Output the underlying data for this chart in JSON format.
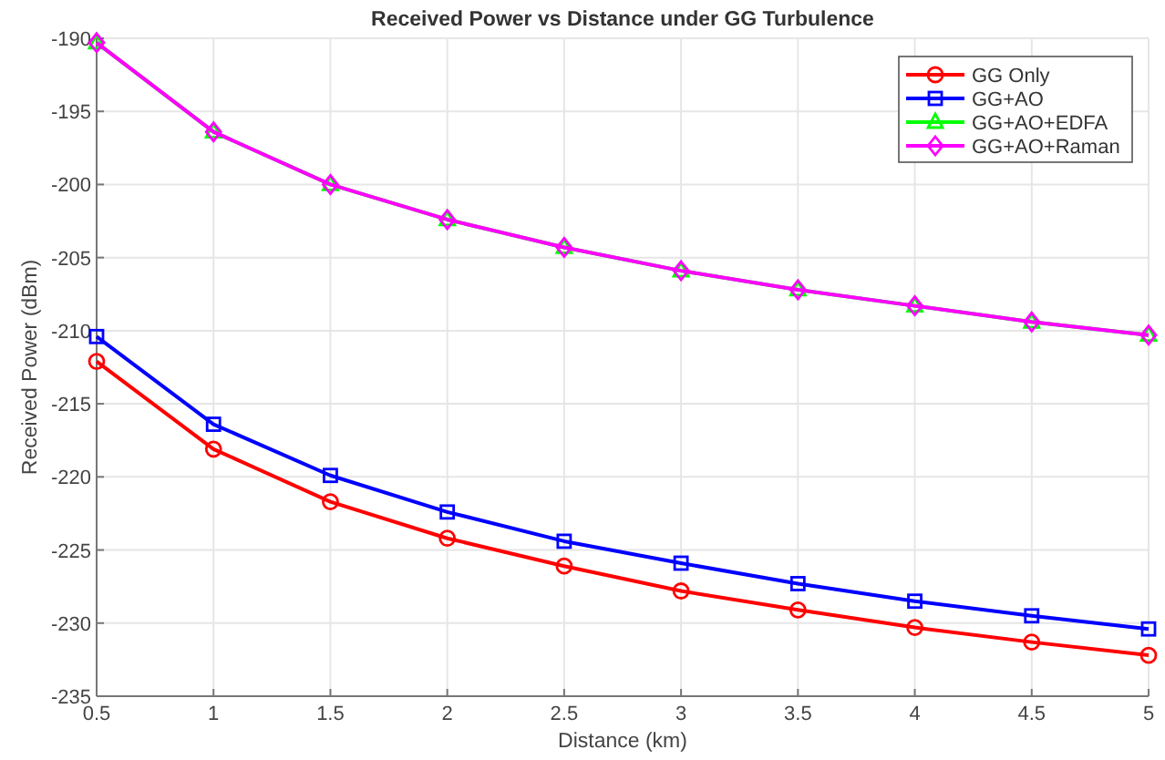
{
  "chart_data": {
    "type": "line",
    "title": "Received Power vs Distance under GG Turbulence",
    "xlabel": "Distance (km)",
    "ylabel": "Received Power (dBm)",
    "x": [
      0.5,
      1,
      1.5,
      2,
      2.5,
      3,
      3.5,
      4,
      4.5,
      5
    ],
    "series": [
      {
        "name": "GG Only",
        "color": "#ff0000",
        "marker": "circle",
        "values": [
          -212.1,
          -218.1,
          -221.7,
          -224.2,
          -226.1,
          -227.8,
          -229.1,
          -230.3,
          -231.3,
          -232.2
        ]
      },
      {
        "name": "GG+AO",
        "color": "#0000ff",
        "marker": "square",
        "values": [
          -210.4,
          -216.4,
          -219.9,
          -222.4,
          -224.4,
          -225.9,
          -227.3,
          -228.5,
          -229.5,
          -230.4
        ]
      },
      {
        "name": "GG+AO+EDFA",
        "color": "#00ff00",
        "marker": "triangle",
        "values": [
          -190.3,
          -196.4,
          -200.0,
          -202.4,
          -204.3,
          -205.9,
          -207.2,
          -208.3,
          -209.4,
          -210.3
        ]
      },
      {
        "name": "GG+AO+Raman",
        "color": "#ff00ff",
        "marker": "diamond",
        "values": [
          -190.3,
          -196.4,
          -200.0,
          -202.4,
          -204.3,
          -205.9,
          -207.2,
          -208.3,
          -209.4,
          -210.3
        ]
      }
    ],
    "xlim": [
      0.5,
      5
    ],
    "xticks": [
      0.5,
      1,
      1.5,
      2,
      2.5,
      3,
      3.5,
      4,
      4.5,
      5
    ],
    "ylim": [
      -235,
      -190
    ],
    "yticks": [
      -235,
      -230,
      -225,
      -220,
      -215,
      -210,
      -205,
      -200,
      -195,
      -190
    ],
    "grid": true,
    "legend": "top right",
    "line_style": "solid"
  }
}
